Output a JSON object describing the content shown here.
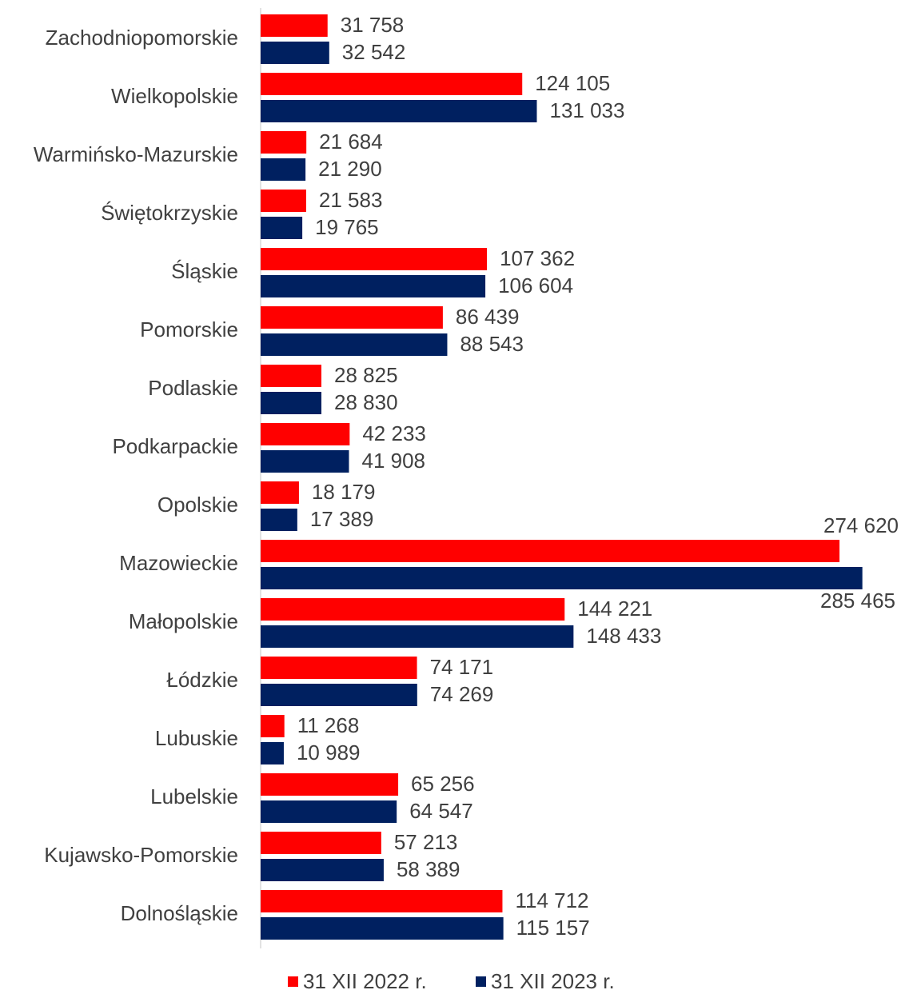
{
  "chart_data": {
    "type": "hbar",
    "categories": [
      "Zachodniopomorskie",
      "Wielkopolskie",
      "Warmińsko-Mazurskie",
      "Świętokrzyskie",
      "Śląskie",
      "Pomorskie",
      "Podlaskie",
      "Podkarpackie",
      "Opolskie",
      "Mazowieckie",
      "Małopolskie",
      "Łódzkie",
      "Lubuskie",
      "Lubelskie",
      "Kujawsko-Pomorskie",
      "Dolnośląskie"
    ],
    "series": [
      {
        "name": "31 XII 2022 r.",
        "color": "#ff0000",
        "values": [
          31758,
          124105,
          21684,
          21583,
          107362,
          86439,
          28825,
          42233,
          18179,
          274620,
          144221,
          74171,
          11268,
          65256,
          57213,
          114712
        ],
        "value_labels": [
          "31 758",
          "124 105",
          "21 684",
          "21 583",
          "107 362",
          "86 439",
          "28 825",
          "42 233",
          "18 179",
          "274 620",
          "144 221",
          "74 171",
          "11 268",
          "65 256",
          "57 213",
          "114 712"
        ]
      },
      {
        "name": "31 XII 2023 r.",
        "color": "#002060",
        "values": [
          32542,
          131033,
          21290,
          19765,
          106604,
          88543,
          28830,
          41908,
          17389,
          285465,
          148433,
          74269,
          10989,
          64547,
          58389,
          115157
        ],
        "value_labels": [
          "32 542",
          "131 033",
          "21 290",
          "19 765",
          "106 604",
          "88 543",
          "28 830",
          "41 908",
          "17 389",
          "285 465",
          "148 433",
          "74 269",
          "10 989",
          "64 547",
          "58 389",
          "115 157"
        ]
      }
    ],
    "xlim": [
      0,
      300000
    ],
    "legend": "bottom"
  }
}
